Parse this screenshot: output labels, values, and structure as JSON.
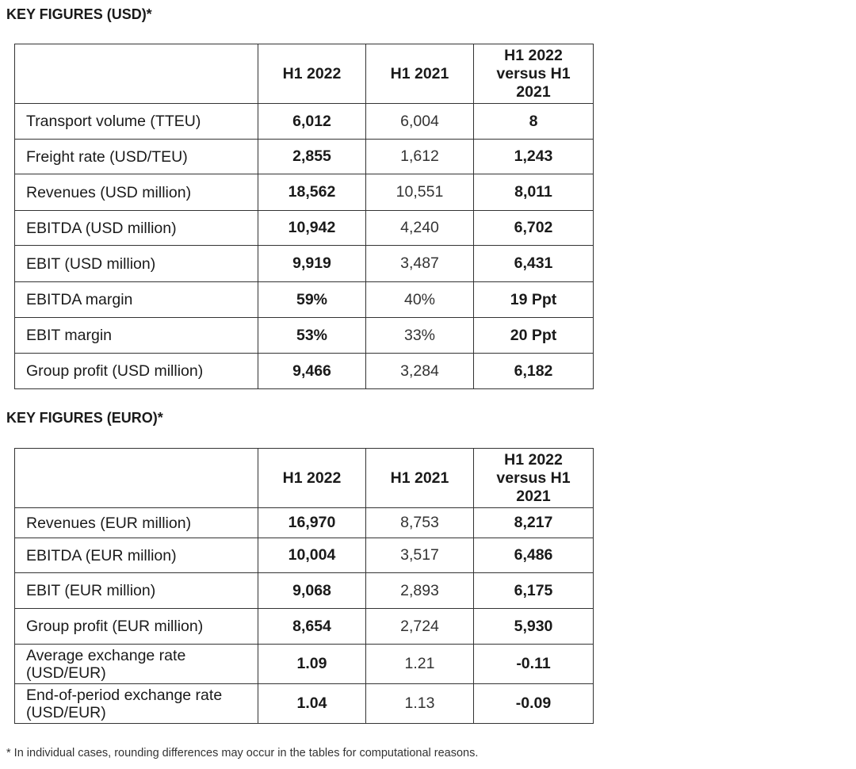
{
  "usd": {
    "title": "KEY FIGURES (USD)*",
    "headers": [
      "",
      "H1 2022",
      "H1 2021",
      "H1 2022 versus H1 2021"
    ],
    "rows": [
      [
        "Transport volume (TTEU)",
        "6,012",
        "6,004",
        "8"
      ],
      [
        "Freight rate (USD/TEU)",
        "2,855",
        "1,612",
        "1,243"
      ],
      [
        "Revenues (USD million)",
        "18,562",
        "10,551",
        "8,011"
      ],
      [
        "EBITDA (USD million)",
        "10,942",
        "4,240",
        "6,702"
      ],
      [
        "EBIT (USD million)",
        "9,919",
        "3,487",
        "6,431"
      ],
      [
        "EBITDA margin",
        "59%",
        "40%",
        "19 Ppt"
      ],
      [
        "EBIT margin",
        "53%",
        "33%",
        "20 Ppt"
      ],
      [
        "Group profit (USD million)",
        "9,466",
        "3,284",
        "6,182"
      ]
    ]
  },
  "eur": {
    "title": "KEY FIGURES (EURO)*",
    "headers": [
      "",
      "H1 2022",
      "H1 2021",
      "H1 2022 versus H1 2021"
    ],
    "rows": [
      [
        "Revenues (EUR million)",
        "16,970",
        "8,753",
        "8,217"
      ],
      [
        "EBITDA (EUR million)",
        "10,004",
        "3,517",
        "6,486"
      ],
      [
        "EBIT (EUR million)",
        "9,068",
        "2,893",
        "6,175"
      ],
      [
        "Group profit (EUR million)",
        "8,654",
        "2,724",
        "5,930"
      ],
      [
        "Average exchange rate (USD/EUR)",
        "1.09",
        "1.21",
        "-0.11"
      ],
      [
        "End-of-period exchange rate (USD/EUR)",
        "1.04",
        "1.13",
        "-0.09"
      ]
    ]
  },
  "footnote": "* In individual cases, rounding differences may occur in the tables for computational reasons."
}
